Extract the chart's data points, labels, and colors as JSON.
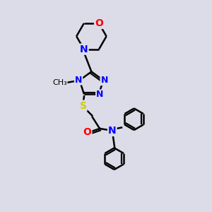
{
  "bg_color": "#dcdce8",
  "bond_color": "#000000",
  "N_color": "#0000ff",
  "O_color": "#ff0000",
  "S_color": "#cccc00",
  "line_width": 1.8,
  "font_size": 10,
  "figsize": [
    3.0,
    3.0
  ],
  "dpi": 100,
  "xlim": [
    0,
    10
  ],
  "ylim": [
    0,
    10
  ]
}
